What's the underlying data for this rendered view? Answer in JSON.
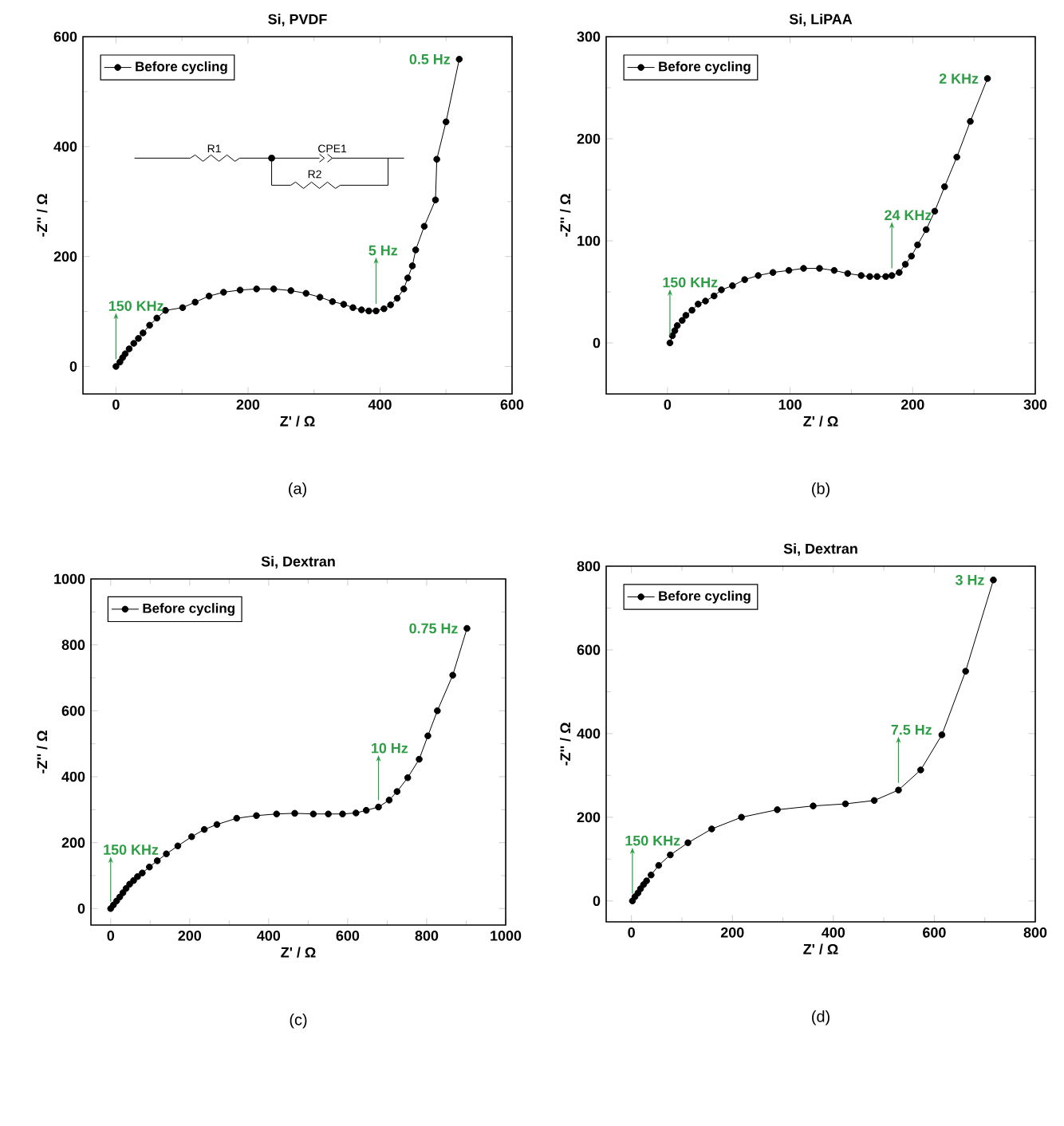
{
  "chart_data": [
    {
      "type": "line",
      "title": "Si, PVDF",
      "xlabel": "Z' / Ω",
      "ylabel": "-Z'' / Ω",
      "xlim": [
        -50,
        600
      ],
      "ylim": [
        -50,
        600
      ],
      "xticks": [
        0,
        200,
        400,
        600
      ],
      "yticks": [
        0,
        200,
        400,
        600
      ],
      "legend": "top left",
      "marker": "circle",
      "line_style": "solid",
      "series": [
        {
          "name": "Before cycling",
          "color": "#000000",
          "x": [
            0,
            6,
            10,
            14,
            20,
            27,
            34,
            41,
            51,
            62,
            75,
            101,
            120,
            141,
            163,
            188,
            213,
            239,
            265,
            288,
            309,
            328,
            345,
            359,
            372,
            383,
            394,
            406,
            416,
            426,
            436,
            442,
            449,
            454,
            467,
            484,
            486,
            500,
            520
          ],
          "values": [
            0,
            8,
            16,
            23,
            32,
            42,
            51,
            61,
            75,
            88,
            102,
            107,
            117,
            128,
            135,
            139,
            141,
            141,
            138,
            133,
            126,
            118,
            113,
            107,
            103,
            101,
            101,
            105,
            112,
            124,
            141,
            161,
            183,
            212,
            255,
            303,
            377,
            445,
            559
          ]
        }
      ],
      "annotations": [
        {
          "text": "150 KHz",
          "x": 0,
          "y": 0
        },
        {
          "text": "5 Hz",
          "x": 394,
          "y": 101
        },
        {
          "text": "0.5 Hz",
          "x": 520,
          "y": 559
        },
        "R1",
        "CPE1",
        "R2",
        "(a)"
      ]
    },
    {
      "type": "line",
      "title": "Si, LiPAA",
      "xlabel": "Z' / Ω",
      "ylabel": "-Z'' / Ω",
      "xlim": [
        -50,
        300
      ],
      "ylim": [
        -50,
        300
      ],
      "xticks": [
        0,
        100,
        200,
        300
      ],
      "yticks": [
        0,
        100,
        200,
        300
      ],
      "legend": "top left",
      "marker": "circle",
      "line_style": "solid",
      "series": [
        {
          "name": "Before cycling",
          "color": "#000000",
          "x": [
            2,
            4,
            6,
            8,
            12,
            15,
            20,
            25,
            31,
            38,
            44,
            53,
            63,
            74,
            86,
            99,
            111,
            124,
            136,
            147,
            158,
            165,
            171,
            178,
            183,
            189,
            194,
            199,
            204,
            211,
            218,
            226,
            236,
            247,
            261
          ],
          "values": [
            0,
            7,
            12,
            17,
            22,
            27,
            32,
            38,
            41,
            46,
            52,
            56,
            62,
            66,
            69,
            71,
            73,
            73,
            71,
            68,
            66,
            65,
            65,
            65,
            66,
            69,
            77,
            85,
            96,
            111,
            129,
            153,
            182,
            217,
            259
          ]
        }
      ],
      "annotations": [
        {
          "text": "150 KHz",
          "x": 2,
          "y": 0
        },
        {
          "text": "24 KHz",
          "x": 183,
          "y": 66
        },
        {
          "text": "2 KHz",
          "x": 261,
          "y": 259
        },
        "(b)"
      ]
    },
    {
      "type": "line",
      "title": "Si, Dextran",
      "xlabel": "Z' / Ω",
      "ylabel": "-Z'' / Ω",
      "xlim": [
        -50,
        1000
      ],
      "ylim": [
        -50,
        1000
      ],
      "xticks": [
        0,
        200,
        400,
        600,
        800,
        1000
      ],
      "yticks": [
        0,
        200,
        400,
        600,
        800,
        1000
      ],
      "legend": "top left",
      "marker": "circle",
      "line_style": "solid",
      "series": [
        {
          "name": "Before cycling",
          "color": "#000000",
          "x": [
            0,
            7,
            15,
            23,
            31,
            39,
            48,
            58,
            68,
            80,
            98,
            118,
            141,
            170,
            205,
            237,
            269,
            319,
            369,
            420,
            466,
            513,
            551,
            587,
            621,
            647,
            678,
            705,
            725,
            752,
            781,
            803,
            827,
            866,
            902
          ],
          "values": [
            0,
            11,
            23,
            35,
            48,
            61,
            74,
            85,
            97,
            108,
            126,
            145,
            166,
            190,
            218,
            240,
            255,
            274,
            282,
            287,
            289,
            287,
            287,
            287,
            290,
            298,
            308,
            329,
            355,
            397,
            453,
            524,
            600,
            708,
            850
          ]
        }
      ],
      "annotations": [
        {
          "text": "150 KHz",
          "x": 0,
          "y": 0
        },
        {
          "text": "10 Hz",
          "x": 678,
          "y": 308
        },
        {
          "text": "0.75 Hz",
          "x": 902,
          "y": 850
        },
        "(c)"
      ]
    },
    {
      "type": "line",
      "title": "Si, Dextran",
      "xlabel": "Z' / Ω",
      "ylabel": "-Z'' / Ω",
      "xlim": [
        -50,
        800
      ],
      "ylim": [
        -50,
        800
      ],
      "xticks": [
        0,
        200,
        400,
        600,
        800
      ],
      "yticks": [
        0,
        200,
        400,
        600,
        800
      ],
      "legend": "top left",
      "marker": "circle",
      "line_style": "solid",
      "series": [
        {
          "name": "Before cycling",
          "color": "#000000",
          "x": [
            2,
            7,
            13,
            18,
            24,
            30,
            39,
            54,
            77,
            112,
            159,
            218,
            289,
            360,
            424,
            481,
            529,
            573,
            615,
            662,
            717
          ],
          "values": [
            0,
            10,
            19,
            29,
            39,
            48,
            62,
            85,
            110,
            139,
            172,
            200,
            218,
            227,
            232,
            240,
            265,
            313,
            397,
            549,
            767
          ]
        }
      ],
      "annotations": [
        {
          "text": "150 KHz",
          "x": 2,
          "y": 0
        },
        {
          "text": "7.5 Hz",
          "x": 529,
          "y": 265
        },
        {
          "text": "3 Hz",
          "x": 717,
          "y": 767
        },
        "(d)"
      ]
    }
  ]
}
